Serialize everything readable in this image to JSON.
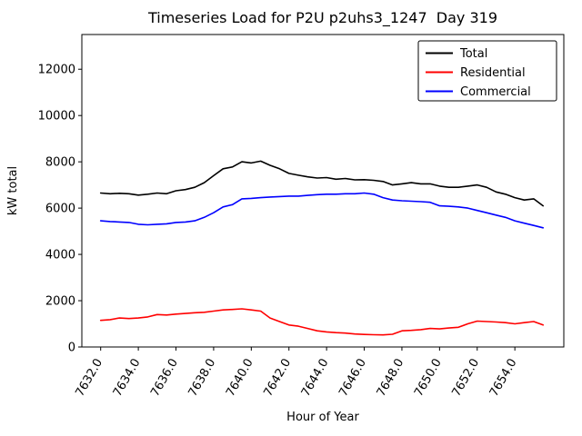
{
  "chart_data": {
    "type": "line",
    "title": "Timeseries Load for P2U p2uhs3_1247  Day 319",
    "xlabel": "Hour of Year",
    "ylabel": "kW total",
    "xlim": [
      7631.0,
      7656.6
    ],
    "ylim": [
      0,
      13500
    ],
    "grid": false,
    "legend_position": "upper right",
    "xticks": [
      7632,
      7634,
      7636,
      7638,
      7640,
      7642,
      7644,
      7646,
      7648,
      7650,
      7652,
      7654
    ],
    "xtick_labels": [
      "7632.0",
      "7634.0",
      "7636.0",
      "7638.0",
      "7640.0",
      "7642.0",
      "7644.0",
      "7646.0",
      "7648.0",
      "7650.0",
      "7652.0",
      "7654.0"
    ],
    "yticks": [
      0,
      2000,
      4000,
      6000,
      8000,
      10000,
      12000
    ],
    "ytick_labels": [
      "0",
      "2000",
      "4000",
      "6000",
      "8000",
      "10000",
      "12000"
    ],
    "x": [
      7632.0,
      7632.5,
      7633.0,
      7633.5,
      7634.0,
      7634.5,
      7635.0,
      7635.5,
      7636.0,
      7636.5,
      7637.0,
      7637.5,
      7638.0,
      7638.5,
      7639.0,
      7639.5,
      7640.0,
      7640.5,
      7641.0,
      7641.5,
      7642.0,
      7642.5,
      7643.0,
      7643.5,
      7644.0,
      7644.5,
      7645.0,
      7645.5,
      7646.0,
      7646.5,
      7647.0,
      7647.5,
      7648.0,
      7648.5,
      7649.0,
      7649.5,
      7650.0,
      7650.5,
      7651.0,
      7651.5,
      7652.0,
      7652.5,
      7653.0,
      7653.5,
      7654.0,
      7654.5,
      7655.0,
      7655.5
    ],
    "series": [
      {
        "name": "Total",
        "color": "#000000",
        "values": [
          6650,
          6620,
          6640,
          6620,
          6560,
          6600,
          6650,
          6620,
          6750,
          6800,
          6900,
          7100,
          7400,
          7700,
          7780,
          8000,
          7950,
          8030,
          7850,
          7700,
          7500,
          7420,
          7350,
          7300,
          7320,
          7250,
          7280,
          7220,
          7230,
          7200,
          7150,
          7000,
          7050,
          7100,
          7050,
          7050,
          6950,
          6900,
          6900,
          6950,
          7000,
          6900,
          6700,
          6600,
          6450,
          6350,
          6400,
          6100
        ]
      },
      {
        "name": "Residential",
        "color": "#ff0000",
        "values": [
          1150,
          1180,
          1250,
          1230,
          1250,
          1300,
          1400,
          1380,
          1420,
          1450,
          1480,
          1500,
          1550,
          1600,
          1620,
          1650,
          1600,
          1550,
          1250,
          1100,
          950,
          900,
          800,
          700,
          650,
          620,
          600,
          560,
          540,
          530,
          520,
          550,
          700,
          720,
          750,
          800,
          780,
          820,
          850,
          1000,
          1120,
          1100,
          1080,
          1050,
          1000,
          1050,
          1100,
          950
        ]
      },
      {
        "name": "Commercial",
        "color": "#0000ff",
        "values": [
          5450,
          5420,
          5400,
          5380,
          5300,
          5280,
          5300,
          5320,
          5380,
          5400,
          5450,
          5600,
          5800,
          6050,
          6150,
          6400,
          6420,
          6450,
          6480,
          6500,
          6520,
          6520,
          6550,
          6580,
          6600,
          6600,
          6620,
          6620,
          6650,
          6600,
          6450,
          6350,
          6320,
          6300,
          6280,
          6250,
          6100,
          6080,
          6050,
          6000,
          5900,
          5800,
          5700,
          5600,
          5450,
          5350,
          5250,
          5150
        ]
      }
    ]
  }
}
